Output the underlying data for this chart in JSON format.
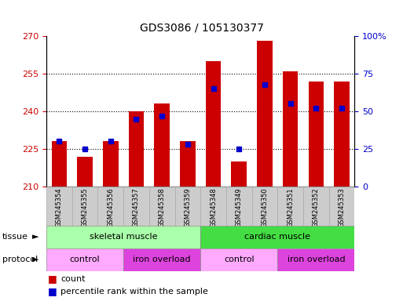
{
  "title": "GDS3086 / 105130377",
  "samples": [
    "GSM245354",
    "GSM245355",
    "GSM245356",
    "GSM245357",
    "GSM245358",
    "GSM245359",
    "GSM245348",
    "GSM245349",
    "GSM245350",
    "GSM245351",
    "GSM245352",
    "GSM245353"
  ],
  "counts": [
    228,
    222,
    228,
    240,
    243,
    228,
    260,
    220,
    268,
    256,
    252,
    252
  ],
  "percentile": [
    30,
    25,
    30,
    45,
    47,
    28,
    65,
    25,
    68,
    55,
    52,
    52
  ],
  "ymin": 210,
  "ymax": 270,
  "yticks_left": [
    210,
    225,
    240,
    255,
    270
  ],
  "yticks_right": [
    0,
    25,
    50,
    75,
    100
  ],
  "bar_color": "#cc0000",
  "dot_color": "#0000cc",
  "bar_width": 0.6,
  "tissue_groups": [
    {
      "label": "skeletal muscle",
      "start": 0,
      "end": 6,
      "color": "#aaffaa"
    },
    {
      "label": "cardiac muscle",
      "start": 6,
      "end": 12,
      "color": "#44dd44"
    }
  ],
  "protocol_groups": [
    {
      "label": "control",
      "start": 0,
      "end": 3,
      "color": "#ffaaff"
    },
    {
      "label": "iron overload",
      "start": 3,
      "end": 6,
      "color": "#dd44dd"
    },
    {
      "label": "control",
      "start": 6,
      "end": 9,
      "color": "#ffaaff"
    },
    {
      "label": "iron overload",
      "start": 9,
      "end": 12,
      "color": "#dd44dd"
    }
  ],
  "legend_count_label": "count",
  "legend_pct_label": "percentile rank within the sample",
  "bg_color": "#ffffff",
  "label_color_left": "#cc0000",
  "label_color_right": "#0000cc",
  "tick_label_bg": "#cccccc",
  "grid_yticks": [
    225,
    240,
    255
  ]
}
